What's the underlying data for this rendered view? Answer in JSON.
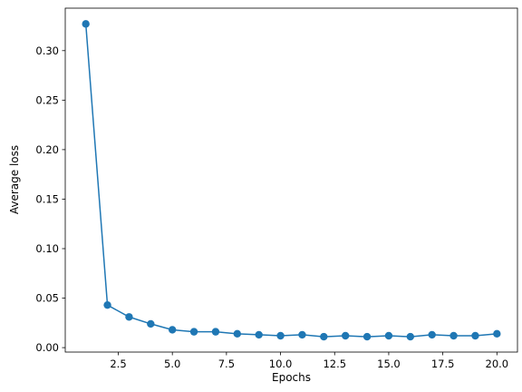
{
  "chart_data": {
    "type": "line",
    "title": "",
    "xlabel": "Epochs",
    "ylabel": "Average loss",
    "xlim": [
      0.05,
      20.95
    ],
    "ylim": [
      -0.0045,
      0.3429
    ],
    "xticks": [
      2.5,
      5.0,
      7.5,
      10.0,
      12.5,
      15.0,
      17.5,
      20.0
    ],
    "xtick_labels": [
      "2.5",
      "5.0",
      "7.5",
      "10.0",
      "12.5",
      "15.0",
      "17.5",
      "20.0"
    ],
    "yticks": [
      0.0,
      0.05,
      0.1,
      0.15,
      0.2,
      0.25,
      0.3
    ],
    "ytick_labels": [
      "0.00",
      "0.05",
      "0.10",
      "0.15",
      "0.20",
      "0.25",
      "0.30"
    ],
    "grid": false,
    "legend": "none",
    "color": "#1f77b4",
    "marker": "circle",
    "series": [
      {
        "x": [
          1,
          2,
          3,
          4,
          5,
          6,
          7,
          8,
          9,
          10,
          11,
          12,
          13,
          14,
          15,
          16,
          17,
          18,
          19,
          20
        ],
        "y": [
          0.327,
          0.043,
          0.031,
          0.024,
          0.018,
          0.016,
          0.016,
          0.014,
          0.013,
          0.012,
          0.013,
          0.011,
          0.012,
          0.011,
          0.012,
          0.011,
          0.013,
          0.012,
          0.012,
          0.014
        ]
      }
    ]
  }
}
